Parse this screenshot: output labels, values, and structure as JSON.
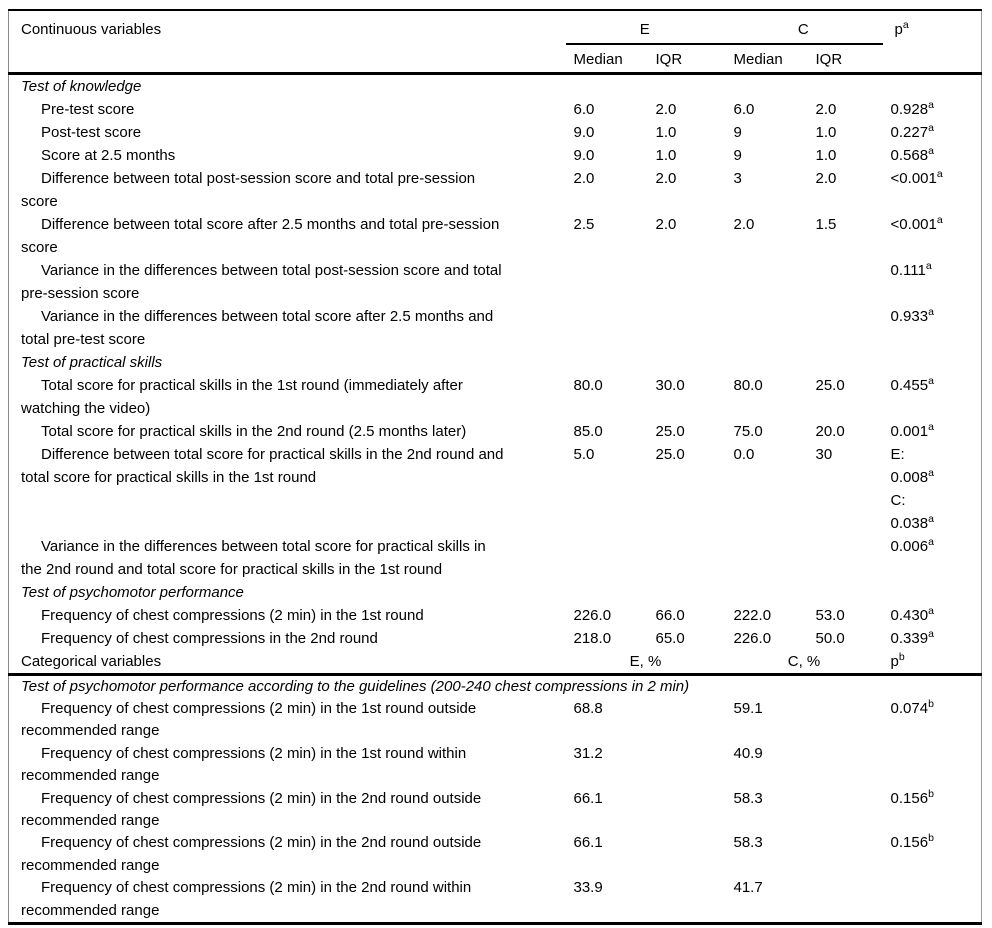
{
  "table": {
    "continuous_header": {
      "label": "Continuous variables",
      "groups": [
        "E",
        "C"
      ],
      "p": {
        "t": "p",
        "sup": "a"
      },
      "subheaders": [
        "Median",
        "IQR",
        "Median",
        "IQR"
      ]
    },
    "rows": [
      {
        "type": "section",
        "label": "Test of knowledge"
      },
      {
        "type": "data",
        "label": "Pre-test score",
        "e_median": "6.0",
        "e_iqr": "2.0",
        "c_median": "6.0",
        "c_iqr": "2.0",
        "p": [
          {
            "t": "0.928",
            "sup": "a"
          }
        ]
      },
      {
        "type": "data",
        "label": "Post-test score",
        "e_median": "9.0",
        "e_iqr": "1.0",
        "c_median": "9",
        "c_iqr": "1.0",
        "p": [
          {
            "t": "0.227",
            "sup": "a"
          }
        ]
      },
      {
        "type": "data",
        "label": "Score at 2.5 months",
        "e_median": "9.0",
        "e_iqr": "1.0",
        "c_median": "9",
        "c_iqr": "1.0",
        "p": [
          {
            "t": "0.568",
            "sup": "a"
          }
        ]
      },
      {
        "type": "data",
        "label": "Difference between total post-session score and total pre-session\nscore",
        "e_median": "2.0",
        "e_iqr": "2.0",
        "c_median": "3",
        "c_iqr": "2.0",
        "p": [
          {
            "t": "<0.001",
            "sup": "a"
          }
        ]
      },
      {
        "type": "data",
        "label": "Difference between total score after 2.5 months and total pre-session\nscore",
        "e_median": "2.5",
        "e_iqr": "2.0",
        "c_median": "2.0",
        "c_iqr": "1.5",
        "p": [
          {
            "t": "<0.001",
            "sup": "a"
          }
        ]
      },
      {
        "type": "data",
        "label": "Variance in the differences between total post-session score and total\npre-session score",
        "e_median": "",
        "e_iqr": "",
        "c_median": "",
        "c_iqr": "",
        "p": [
          {
            "t": "0.111",
            "sup": "a"
          }
        ]
      },
      {
        "type": "data",
        "label": "Variance in the differences between total score after 2.5 months and\ntotal pre-test score",
        "e_median": "",
        "e_iqr": "",
        "c_median": "",
        "c_iqr": "",
        "p": [
          {
            "t": "0.933",
            "sup": "a"
          }
        ]
      },
      {
        "type": "section",
        "label": "Test of practical skills"
      },
      {
        "type": "data",
        "label": "Total score for practical skills in the 1st round (immediately after\nwatching the video)",
        "e_median": "80.0",
        "e_iqr": "30.0",
        "c_median": "80.0",
        "c_iqr": "25.0",
        "p": [
          {
            "t": "0.455",
            "sup": "a"
          }
        ]
      },
      {
        "type": "data",
        "label": "Total score for practical skills in the 2nd round (2.5 months later)",
        "e_median": "85.0",
        "e_iqr": "25.0",
        "c_median": "75.0",
        "c_iqr": "20.0",
        "p": [
          {
            "t": "0.001",
            "sup": "a"
          }
        ]
      },
      {
        "type": "data",
        "label": "Difference between total score for practical skills in the 2nd round and\ntotal score for practical skills in the 1st round",
        "e_median": "5.0",
        "e_iqr": "25.0",
        "c_median": "0.0",
        "c_iqr": "30",
        "p": [
          {
            "t": "E:",
            "sup": ""
          },
          {
            "t": "0.008",
            "sup": "a"
          },
          {
            "t": "C:",
            "sup": ""
          },
          {
            "t": "0.038",
            "sup": "a"
          }
        ]
      },
      {
        "type": "data",
        "label": "Variance in the differences between total score for practical skills in\nthe 2nd round and total score for practical skills in the 1st round",
        "e_median": "",
        "e_iqr": "",
        "c_median": "",
        "c_iqr": "",
        "p": [
          {
            "t": "0.006",
            "sup": "a"
          }
        ]
      },
      {
        "type": "section",
        "label": "Test of psychomotor performance"
      },
      {
        "type": "data",
        "label": "Frequency of chest compressions (2 min) in the 1st round",
        "e_median": "226.0",
        "e_iqr": "66.0",
        "c_median": "222.0",
        "c_iqr": "53.0",
        "p": [
          {
            "t": "0.430",
            "sup": "a"
          }
        ]
      },
      {
        "type": "data",
        "label": "Frequency of chest compressions in the 2nd round",
        "e_median": "218.0",
        "e_iqr": "65.0",
        "c_median": "226.0",
        "c_iqr": "50.0",
        "p": [
          {
            "t": "0.339",
            "sup": "a"
          }
        ]
      }
    ],
    "categorical_header": {
      "label": "Categorical variables",
      "groups": [
        "E, %",
        "C, %"
      ],
      "p": {
        "t": "p",
        "sup": "b"
      }
    },
    "cat_rows": [
      {
        "type": "section",
        "label": "Test of psychomotor performance according to the guidelines (200-240 chest compressions in 2 min)"
      },
      {
        "type": "cat",
        "label": "Frequency of chest compressions (2 min) in the 1st round outside\nrecommended range",
        "e": "68.8",
        "c": "59.1",
        "p": [
          {
            "t": "0.074",
            "sup": "b"
          }
        ]
      },
      {
        "type": "cat",
        "label": "Frequency of chest compressions (2 min) in the 1st round within\nrecommended range",
        "e": "31.2",
        "c": "40.9",
        "p": []
      },
      {
        "type": "cat",
        "label": "Frequency of chest compressions (2 min) in the 2nd round outside\nrecommended range",
        "e": "66.1",
        "c": "58.3",
        "p": [
          {
            "t": "0.156",
            "sup": "b"
          }
        ]
      },
      {
        "type": "cat",
        "label": "Frequency of chest compressions (2 min) in the 2nd round outside\nrecommended range",
        "e": "66.1",
        "c": "58.3",
        "p": [
          {
            "t": "0.156",
            "sup": "b"
          }
        ]
      },
      {
        "type": "cat",
        "label": "Frequency of chest compressions (2 min) in the 2nd round within\nrecommended range",
        "e": "33.9",
        "c": "41.7",
        "p": []
      }
    ]
  }
}
